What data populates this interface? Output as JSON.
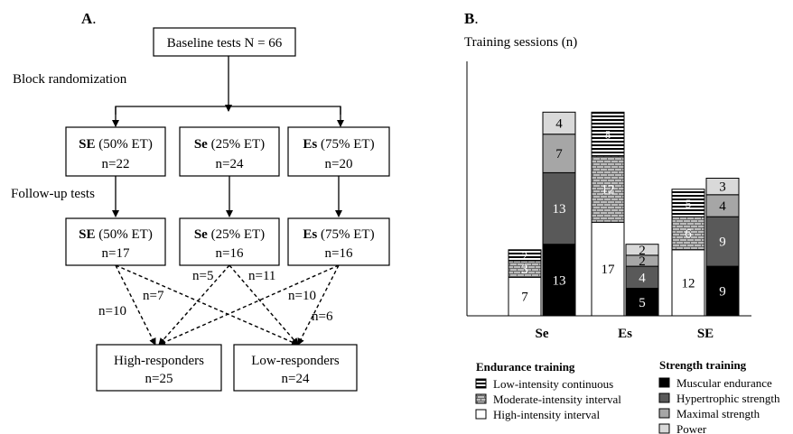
{
  "panel_a": {
    "label": "A",
    "label_suffix": ".",
    "baseline": "Baseline tests N = 66",
    "block_randomization": "Block randomization",
    "follow_up": "Follow-up tests",
    "groups_top": [
      {
        "code": "SE",
        "desc": " (50% ET)",
        "n": "n=22"
      },
      {
        "code": "Se",
        "desc": " (25% ET)",
        "n": "n=24"
      },
      {
        "code": "Es",
        "desc": " (75% ET)",
        "n": "n=20"
      }
    ],
    "groups_follow": [
      {
        "code": "SE",
        "desc": " (50% ET)",
        "n": "n=17"
      },
      {
        "code": "Se",
        "desc": " (25% ET)",
        "n": "n=16"
      },
      {
        "code": "Es",
        "desc": " (75% ET)",
        "n": "n=16"
      }
    ],
    "flow_labels": [
      "n=7",
      "n=10",
      "n=5",
      "n=11",
      "n=10",
      "n=6"
    ],
    "responders": [
      {
        "label": "High-responders",
        "n": "n=25"
      },
      {
        "label": "Low-responders",
        "n": "n=24"
      }
    ]
  },
  "panel_b": {
    "label": "B",
    "label_suffix": ".",
    "ylabel": "Training sessions (n)"
  },
  "chart_data": {
    "type": "bar",
    "stacked": true,
    "categories": [
      "Se",
      "Es",
      "SE"
    ],
    "ylabel": "Training sessions (n)",
    "grid": false,
    "legend_position": "bottom",
    "endurance_series": [
      {
        "name": "High-intensity interval",
        "values": [
          7,
          17,
          12
        ],
        "color": "#ffffff",
        "pattern": "none"
      },
      {
        "name": "Moderate-intensity interval",
        "values": [
          3,
          12,
          6
        ],
        "color": "#8c8c8c",
        "pattern": "brick"
      },
      {
        "name": "Low-intensity continuous",
        "values": [
          2,
          8,
          5
        ],
        "color": "#ffffff",
        "pattern": "horizontal-stripes"
      }
    ],
    "strength_series": [
      {
        "name": "Muscular endurance",
        "values": [
          13,
          5,
          9
        ],
        "color": "#000000"
      },
      {
        "name": "Hypertrophic strength",
        "values": [
          13,
          4,
          9
        ],
        "color": "#595959"
      },
      {
        "name": "Maximal strength",
        "values": [
          7,
          2,
          4
        ],
        "color": "#a6a6a6"
      },
      {
        "name": "Power",
        "values": [
          4,
          2,
          3
        ],
        "color": "#d9d9d9"
      }
    ],
    "value_labels": [
      {
        "category": "Se",
        "series": "High-intensity interval",
        "text": "7"
      },
      {
        "category": "Se",
        "series": "Moderate-intensity interval",
        "text": "3"
      },
      {
        "category": "Se",
        "series": "Low-intensity continuous",
        "text": "2"
      },
      {
        "category": "Se",
        "series": "Muscular endurance",
        "text": "13"
      },
      {
        "category": "Se",
        "series": "Hypertrophic strength",
        "text": "13"
      },
      {
        "category": "Se",
        "series": "Maximal strength",
        "text": "7"
      },
      {
        "category": "Se",
        "series": "Power",
        "text": "4"
      },
      {
        "category": "Es",
        "series": "High-intensity interval",
        "text": "17"
      },
      {
        "category": "Es",
        "series": "Moderate-intensity interval",
        "text": "12"
      },
      {
        "category": "Es",
        "series": "Low-intensity continuous",
        "text": "8"
      },
      {
        "category": "Es",
        "series": "Muscular endurance",
        "text": "5"
      },
      {
        "category": "Es",
        "series": "Hypertrophic strength",
        "text": "4"
      },
      {
        "category": "Es",
        "series": "Maximal strength",
        "text": "2"
      },
      {
        "category": "Es",
        "series": "Power",
        "text": "2"
      },
      {
        "category": "SE",
        "series": "High-intensity interval",
        "text": "12"
      },
      {
        "category": "SE",
        "series": "Moderate-intensity interval",
        "text": "6"
      },
      {
        "category": "SE",
        "series": "Low-intensity continuous",
        "text": "5"
      },
      {
        "category": "SE",
        "series": "Muscular endurance",
        "text": "9"
      },
      {
        "category": "SE",
        "series": "Hypertrophic strength",
        "text": "9"
      },
      {
        "category": "SE",
        "series": "Maximal strength",
        "text": "4"
      },
      {
        "category": "SE",
        "series": "Power",
        "text": "3"
      }
    ],
    "legend": {
      "endurance_title": "Endurance training",
      "endurance_items": [
        "Low-intensity continuous",
        "Moderate-intensity interval",
        "High-intensity interval"
      ],
      "strength_title": "Strength training",
      "strength_items": [
        "Muscular endurance",
        "Hypertrophic strength",
        "Maximal strength",
        "Power"
      ]
    }
  }
}
